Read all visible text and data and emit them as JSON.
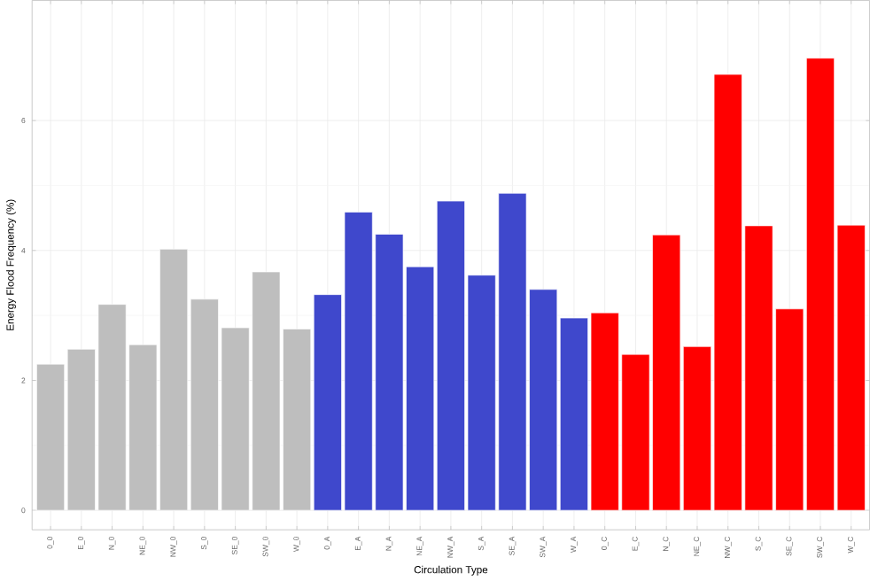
{
  "chart_data": {
    "type": "bar",
    "xlabel": "Circulation Type",
    "ylabel": "Energy Flood Frequency (%)",
    "categories": [
      "0_0",
      "E_0",
      "N_0",
      "NE_0",
      "NW_0",
      "S_0",
      "SE_0",
      "SW_0",
      "W_0",
      "0_A",
      "E_A",
      "N_A",
      "NE_A",
      "NW_A",
      "S_A",
      "SE_A",
      "SW_A",
      "W_A",
      "0_C",
      "E_C",
      "N_C",
      "NE_C",
      "NW_C",
      "S_C",
      "SE_C",
      "SW_C",
      "W_C"
    ],
    "values": [
      2.25,
      2.48,
      3.17,
      2.55,
      4.02,
      3.25,
      2.81,
      3.67,
      2.79,
      3.32,
      4.59,
      4.25,
      3.75,
      4.76,
      3.62,
      4.88,
      3.4,
      2.96,
      3.04,
      2.4,
      4.24,
      2.52,
      6.71,
      4.38,
      3.1,
      6.96,
      4.39
    ],
    "colors": [
      "#bebebe",
      "#bebebe",
      "#bebebe",
      "#bebebe",
      "#bebebe",
      "#bebebe",
      "#bebebe",
      "#bebebe",
      "#bebebe",
      "#3f48cc",
      "#3f48cc",
      "#3f48cc",
      "#3f48cc",
      "#3f48cc",
      "#3f48cc",
      "#3f48cc",
      "#3f48cc",
      "#3f48cc",
      "#ff0000",
      "#ff0000",
      "#ff0000",
      "#ff0000",
      "#ff0000",
      "#ff0000",
      "#ff0000",
      "#ff0000",
      "#ff0000"
    ],
    "ylim": [
      -0.3,
      7.85
    ],
    "yticks": [
      0,
      2,
      4,
      6
    ],
    "grid": true
  }
}
